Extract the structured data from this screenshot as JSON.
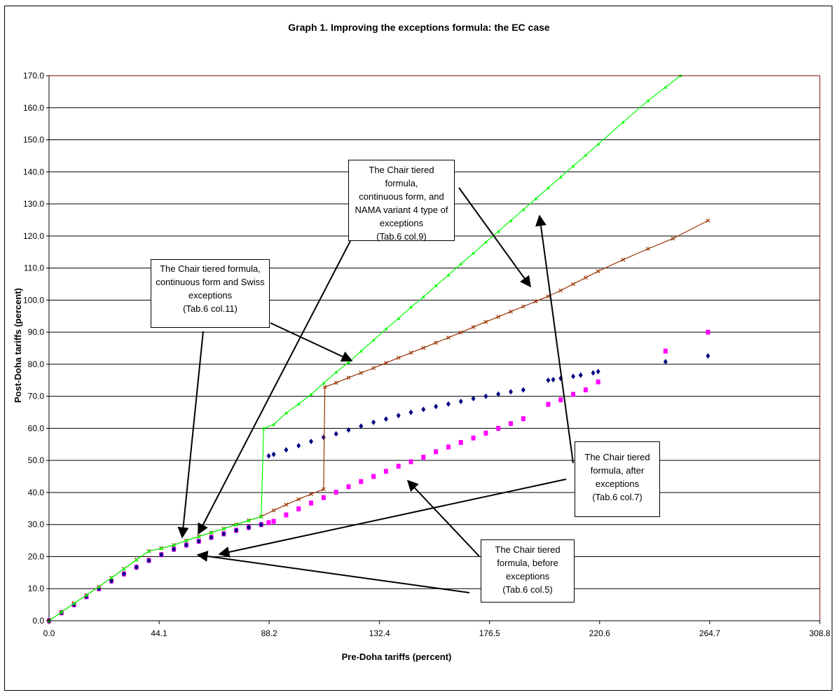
{
  "chart_data": {
    "type": "scatter",
    "title": "Graph 1.  Improving the exceptions formula: the EC case",
    "xlabel": "Pre-Doha tariffs (percent)",
    "ylabel": "Post-Doha tariffs (percent)",
    "xlim": [
      0,
      308.8
    ],
    "ylim": [
      0,
      170
    ],
    "x_ticks": [
      "0.0",
      "44.1",
      "88.2",
      "132.4",
      "176.5",
      "220.6",
      "264.7",
      "308.8"
    ],
    "y_ticks": [
      "0.0",
      "10.0",
      "20.0",
      "30.0",
      "40.0",
      "50.0",
      "60.0",
      "70.0",
      "80.0",
      "90.0",
      "100.0",
      "110.0",
      "120.0",
      "130.0",
      "140.0",
      "150.0",
      "160.0",
      "170.0"
    ],
    "grid": "horizontal",
    "series": [
      {
        "key": "after",
        "color": "#000080",
        "marker": "diamond",
        "x": [
          0,
          5,
          10,
          15,
          20,
          25,
          30,
          35,
          40,
          45,
          50,
          55,
          60,
          65,
          70,
          75,
          80,
          85,
          88,
          90,
          95,
          100,
          105,
          110,
          115,
          120,
          125,
          130,
          135,
          140,
          145,
          150,
          155,
          160,
          165,
          170,
          175,
          180,
          185,
          190,
          200,
          202,
          205,
          210,
          213,
          218,
          220,
          247,
          264
        ],
        "y": [
          0,
          2.5,
          5,
          7.5,
          10,
          12.4,
          14.6,
          16.7,
          18.8,
          20.6,
          22.3,
          23.6,
          24.8,
          26,
          27.1,
          28.2,
          29.1,
          30,
          51.4,
          51.9,
          53.3,
          54.6,
          55.9,
          57.2,
          58.3,
          59.5,
          60.7,
          61.9,
          62.9,
          64,
          65,
          65.9,
          66.8,
          67.6,
          68.4,
          69.3,
          70,
          70.7,
          71.4,
          72,
          75,
          75.2,
          75.6,
          76.2,
          76.6,
          77.3,
          77.7,
          80.8,
          82.6
        ]
      },
      {
        "key": "before",
        "color": "#ff00ff",
        "marker": "square",
        "x": [
          0,
          5,
          10,
          15,
          20,
          25,
          30,
          35,
          40,
          45,
          50,
          55,
          60,
          65,
          70,
          75,
          80,
          85,
          88,
          90,
          95,
          100,
          105,
          110,
          115,
          120,
          125,
          130,
          135,
          140,
          145,
          150,
          155,
          160,
          165,
          170,
          175,
          180,
          185,
          190,
          200,
          205,
          210,
          215,
          220,
          247,
          264
        ],
        "y": [
          0,
          2.5,
          5,
          7.5,
          10,
          12.4,
          14.6,
          16.7,
          18.8,
          20.6,
          22.3,
          23.6,
          24.8,
          26,
          27.1,
          28.2,
          29.1,
          30,
          30.6,
          31,
          33,
          34.9,
          36.7,
          38.4,
          40.1,
          41.8,
          43.4,
          45,
          46.6,
          48.2,
          49.6,
          51,
          52.7,
          54.2,
          55.6,
          57,
          58.5,
          60,
          61.5,
          63,
          67.5,
          68.9,
          70.6,
          72,
          74.5,
          84.1,
          90
        ]
      },
      {
        "key": "swiss",
        "color": "#993300",
        "marker": "x",
        "x": [
          0,
          5,
          10,
          15,
          20,
          25,
          30,
          35,
          40,
          45,
          50,
          55,
          60,
          65,
          70,
          75,
          80,
          85,
          90,
          95,
          100,
          105,
          110,
          110.5,
          115,
          120,
          125,
          130,
          135,
          140,
          145,
          150,
          155,
          160,
          165,
          170,
          175,
          180,
          185,
          190,
          195,
          200,
          205,
          210,
          215,
          220,
          230,
          240,
          250,
          264
        ],
        "y": [
          0,
          2.7,
          5.4,
          8,
          10.6,
          13.4,
          16.2,
          19,
          21.7,
          22.6,
          23.6,
          25,
          26.3,
          27.5,
          28.7,
          30,
          31.3,
          32.5,
          34.4,
          36.2,
          37.9,
          39.5,
          41,
          72.9,
          74.2,
          75.8,
          77.3,
          78.8,
          80.4,
          82,
          83.6,
          85.1,
          86.7,
          88.3,
          89.9,
          91.6,
          93.2,
          94.8,
          96.4,
          98,
          99.6,
          101.2,
          103,
          105,
          107,
          109,
          112.6,
          116,
          119.2,
          124.8
        ]
      },
      {
        "key": "nama",
        "color": "#00ff00",
        "marker": "triangle",
        "x": [
          0,
          5,
          10,
          15,
          20,
          25,
          30,
          35,
          40,
          45,
          50,
          55,
          60,
          65,
          70,
          75,
          80,
          85,
          86,
          90,
          95,
          100,
          105,
          110,
          115,
          120,
          125,
          130,
          135,
          140,
          145,
          150,
          155,
          160,
          165,
          170,
          175,
          180,
          185,
          190,
          195,
          200,
          205,
          210,
          215,
          220,
          230,
          240,
          247,
          253
        ],
        "y": [
          0,
          2.7,
          5.4,
          8,
          10.6,
          13.4,
          16.2,
          19,
          21.7,
          22.6,
          23.6,
          25,
          26.3,
          27.5,
          28.7,
          30,
          31.3,
          32.5,
          60,
          61.2,
          64.8,
          67.6,
          70.6,
          74.1,
          77.5,
          80.6,
          84.1,
          87.5,
          91,
          94.3,
          97.8,
          101,
          104.5,
          107.8,
          111.3,
          114.6,
          118.1,
          121.4,
          124.8,
          128.2,
          131.6,
          135,
          138.4,
          141.8,
          145.2,
          148.6,
          155.5,
          162.2,
          166.4,
          170
        ]
      }
    ],
    "annotations": [
      {
        "key": "a1",
        "lines": [
          "The Chair tiered formula,",
          "continuous form, and",
          "NAMA variant 4 type of",
          "exceptions",
          "(Tab.6 col.9)"
        ]
      },
      {
        "key": "a2",
        "lines": [
          "The Chair tiered formula,",
          "continuous form and Swiss",
          "exceptions",
          "(Tab.6 col.11)"
        ]
      },
      {
        "key": "a3",
        "lines": [
          "The Chair tiered",
          "formula, after",
          "exceptions",
          "(Tab.6 col.7)"
        ]
      },
      {
        "key": "a4",
        "lines": [
          "The Chair tiered",
          "formula, before",
          "exceptions",
          "(Tab.6 col.5)"
        ]
      }
    ]
  }
}
